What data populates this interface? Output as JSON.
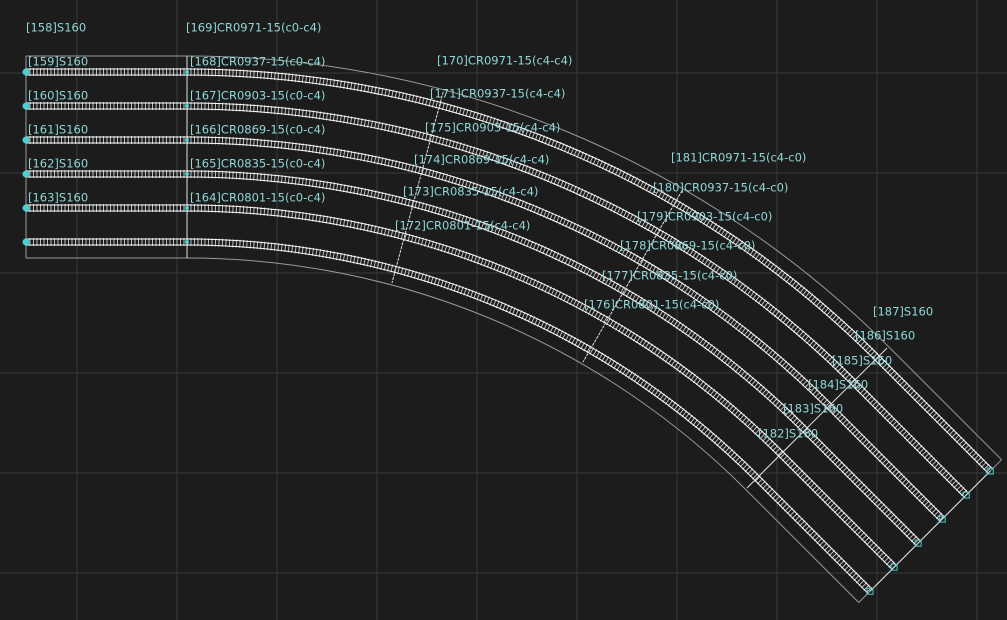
{
  "labels": [
    "[158]S160",
    "[169]CR0971-15(c0-c4)",
    "[159]S160",
    "[160]S160",
    "[161]S160",
    "[162]S160",
    "[163]S160",
    "[168]CR0937-15(c0-c4)",
    "[167]CR0903-15(c0-c4)",
    "[166]CR0869-15(c0-c4)",
    "[165]CR0835-15(c0-c4)",
    "[164]CR0801-15(c0-c4)",
    "[170]CR0971-15(c4-c4)",
    "[171]CR0937-15(c4-c4)",
    "[175]CR0903-15(c4-c4)",
    "[174]CR0869-15(c4-c4)",
    "[173]CR0835-15(c4-c4)",
    "[172]CR0801-15(c4-c4)",
    "[181]CR0971-15(c4-c0)",
    "[180]CR0937-15(c4-c0)",
    "[179]CR0903-15(c4-c0)",
    "[178]CR0869-15(c4-c0)",
    "[177]CR0835-15(c4-c0)",
    "[176]CR0801-15(c4-c0)",
    "[187]S160",
    "[186]S160",
    "[185]S160",
    "[184]S160",
    "[183]S160",
    "[182]S160"
  ]
}
